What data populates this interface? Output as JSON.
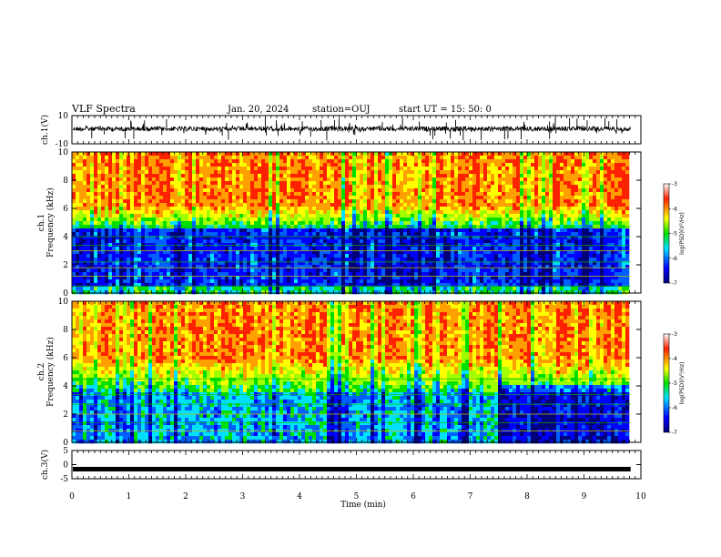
{
  "header": {
    "title": "VLF Spectra",
    "date": "Jan. 20, 2024",
    "station": "station=OUJ",
    "start_ut": "start  UT =   15: 50: 0"
  },
  "chart_data": [
    {
      "type": "line",
      "name": "ch1-waveform",
      "ylabel": "ch.1(V)",
      "ylim": [
        -10,
        10
      ],
      "yticks": [
        "10",
        "-10"
      ],
      "xlim": [
        0,
        10
      ],
      "data_end": 9.82,
      "baseline": 0.6,
      "color": "#000000"
    },
    {
      "type": "heatmap",
      "name": "ch1-spectrogram",
      "ylabel": "ch.1\nFrequency (kHz)",
      "ylim": [
        0,
        10
      ],
      "yticks": [
        "0",
        "2",
        "4",
        "6",
        "8",
        "10"
      ],
      "xlim": [
        0,
        10
      ],
      "data_end": 9.82,
      "colorbar": {
        "label": "log(PSD)(V²/Hz)",
        "ticks": [
          "-3",
          "-4",
          "-5",
          "-6",
          "-7"
        ],
        "range": [
          -7,
          -3
        ]
      }
    },
    {
      "type": "heatmap",
      "name": "ch2-spectrogram",
      "ylabel": "ch.2\nFrequency (kHz)",
      "ylim": [
        0,
        10
      ],
      "yticks": [
        "0",
        "2",
        "4",
        "6",
        "8",
        "10"
      ],
      "xlim": [
        0,
        10
      ],
      "data_end": 9.82,
      "colorbar": {
        "label": "log(PSD)(V²/Hz)",
        "ticks": [
          "-3",
          "-4",
          "-5",
          "-6",
          "-7"
        ],
        "range": [
          -7,
          -3
        ]
      }
    },
    {
      "type": "line",
      "name": "ch3-waveform",
      "ylabel": "ch.3(V)",
      "ylim": [
        -5,
        5
      ],
      "yticks": [
        "5",
        "0",
        "-5"
      ],
      "xlim": [
        0,
        10
      ],
      "data_end": 9.82,
      "baseline": -1.6,
      "color": "#000000"
    }
  ],
  "xaxis": {
    "label": "Time (min)",
    "ticks": [
      "0",
      "1",
      "2",
      "3",
      "4",
      "5",
      "6",
      "7",
      "8",
      "9",
      "10"
    ]
  },
  "colors": {
    "red": "#ff2200",
    "yellow": "#ffff00",
    "green": "#00e000",
    "cyan": "#00e0ff",
    "blue": "#0000ff",
    "navy": "#00007a"
  }
}
